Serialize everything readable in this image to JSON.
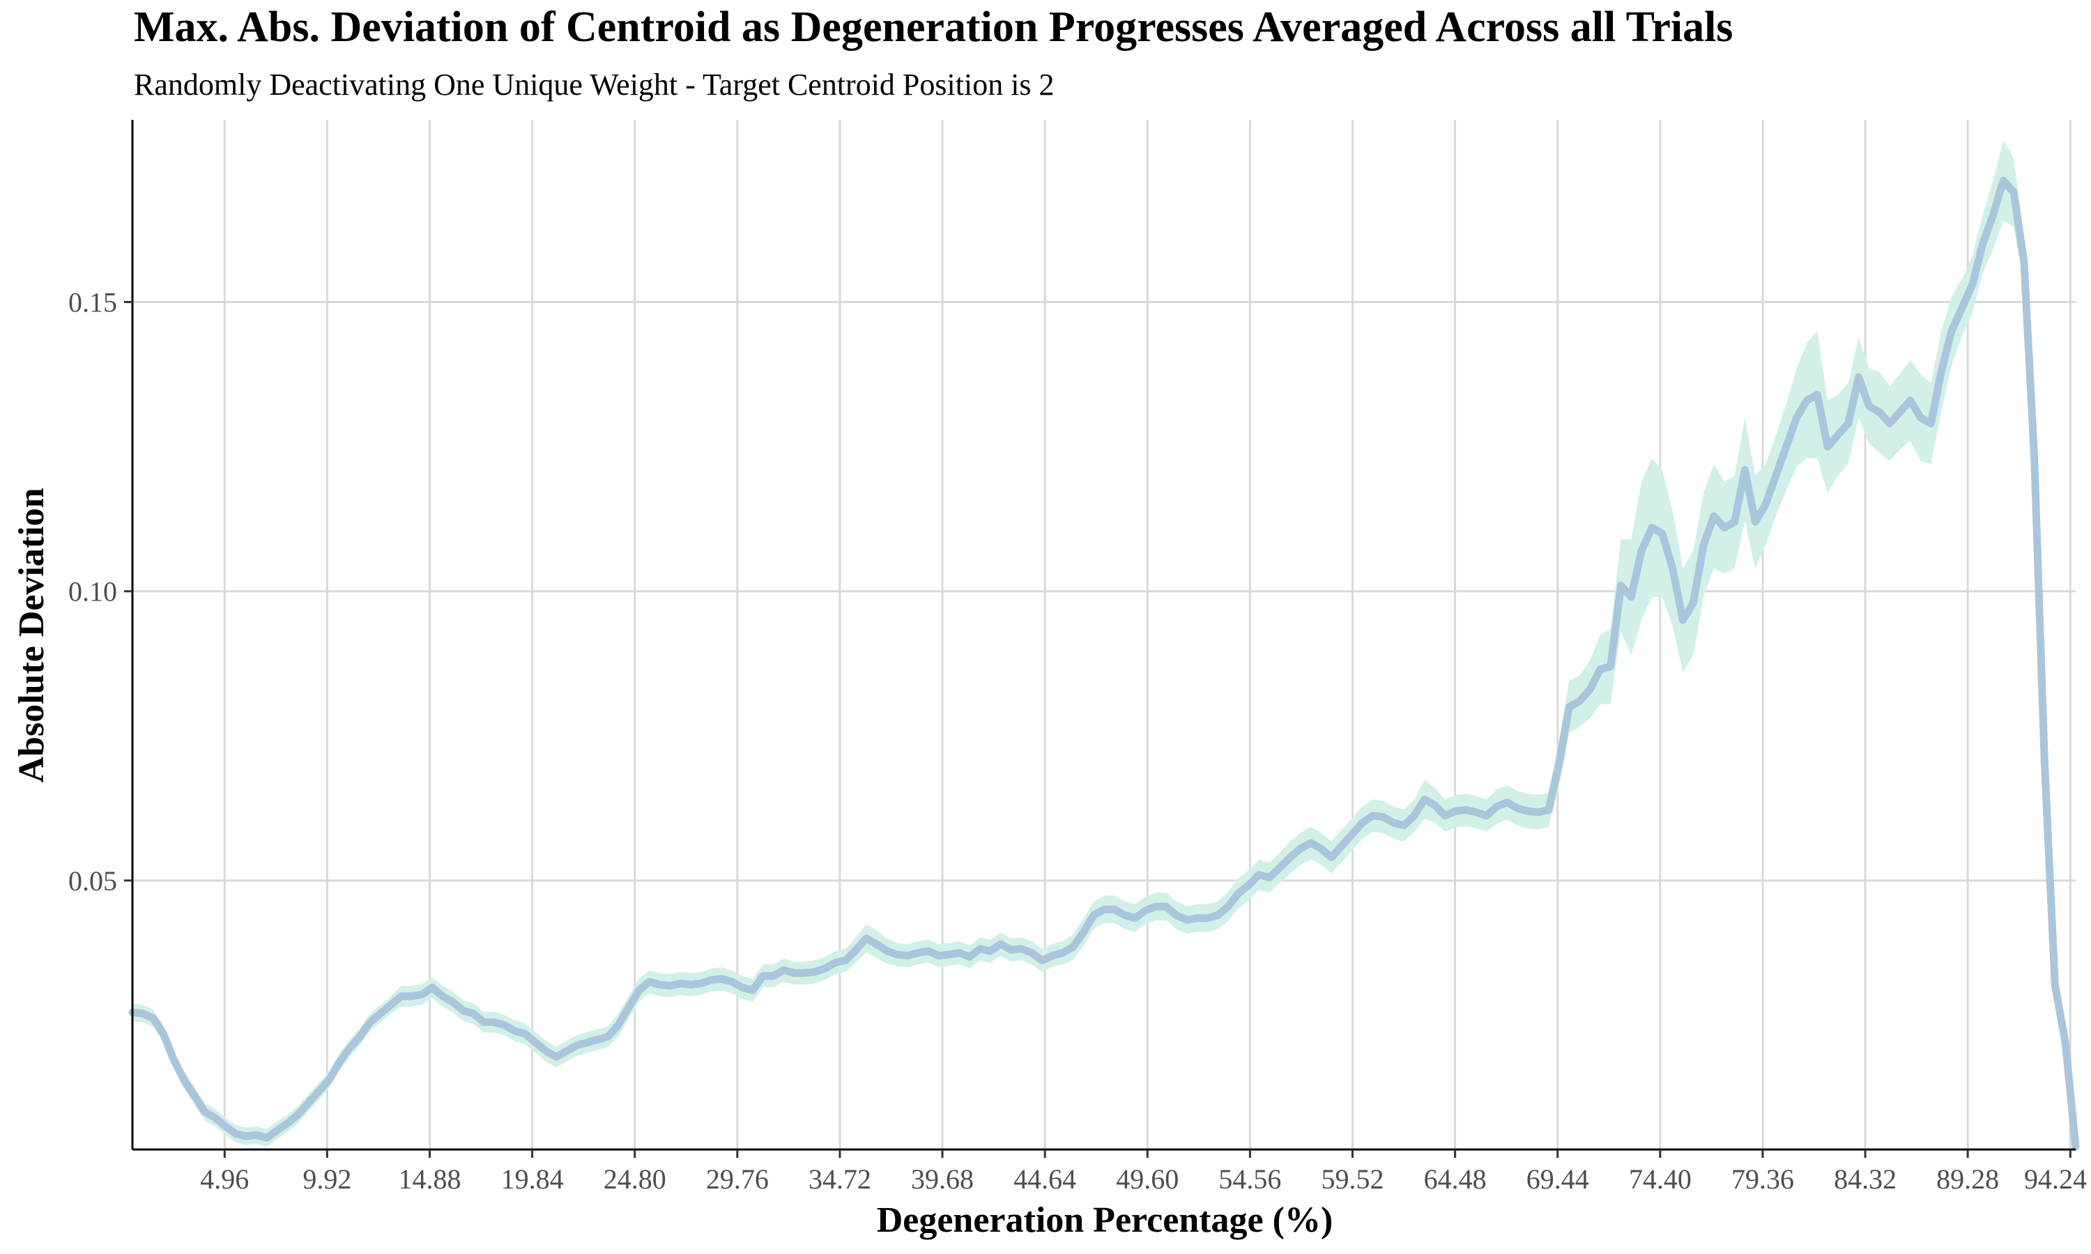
{
  "chart_data": {
    "type": "line",
    "title": "Max. Abs. Deviation of Centroid as Degeneration Progresses Averaged Across all Trials",
    "subtitle": "Randomly Deactivating One Unique Weight - Target Centroid Position is 2",
    "xlabel": "Degeneration Percentage (%)",
    "ylabel": "Absolute Deviation",
    "xlim": [
      0.5,
      94.5
    ],
    "ylim": [
      0.0035,
      0.1815
    ],
    "x_ticks": [
      4.96,
      9.92,
      14.88,
      19.84,
      24.8,
      29.76,
      34.72,
      39.68,
      44.64,
      49.6,
      54.56,
      59.52,
      64.48,
      69.44,
      74.4,
      79.36,
      84.32,
      89.28,
      94.24
    ],
    "x_tick_labels": [
      "4.96",
      "9.92",
      "14.88",
      "19.84",
      "24.80",
      "29.76",
      "34.72",
      "39.68",
      "44.64",
      "49.60",
      "54.56",
      "59.52",
      "64.48",
      "69.44",
      "74.40",
      "79.36",
      "84.32",
      "89.28",
      "94.24"
    ],
    "y_ticks": [
      0.05,
      0.1,
      0.15
    ],
    "y_tick_labels": [
      "0.05",
      "0.10",
      "0.15"
    ],
    "grid": true,
    "legend": "none",
    "series": [
      {
        "line_color": "#a9c6dc",
        "band_color": "#d3f0e8",
        "x": [
          0.5,
          1.0,
          1.5,
          2.0,
          2.5,
          3.0,
          3.5,
          4.0,
          4.5,
          5.0,
          5.5,
          6.0,
          6.5,
          7.0,
          7.5,
          8.0,
          8.5,
          9.0,
          9.5,
          10.0,
          10.5,
          11.0,
          11.5,
          12.0,
          12.5,
          13.0,
          13.5,
          14.0,
          14.5,
          15.0,
          15.5,
          16.0,
          16.5,
          17.0,
          17.5,
          18.0,
          18.5,
          19.0,
          19.5,
          20.0,
          20.5,
          21.0,
          21.5,
          22.0,
          22.5,
          23.0,
          23.5,
          24.0,
          24.5,
          25.0,
          25.5,
          26.0,
          26.5,
          27.0,
          27.5,
          28.0,
          28.5,
          29.0,
          29.5,
          30.0,
          30.5,
          31.0,
          31.5,
          32.0,
          32.5,
          33.0,
          33.5,
          34.0,
          34.5,
          35.0,
          35.5,
          36.0,
          36.5,
          37.0,
          37.5,
          38.0,
          38.5,
          39.0,
          39.5,
          40.0,
          40.5,
          41.0,
          41.5,
          42.0,
          42.5,
          43.0,
          43.5,
          44.0,
          44.5,
          45.0,
          45.5,
          46.0,
          46.5,
          47.0,
          47.5,
          48.0,
          48.5,
          49.0,
          49.5,
          50.0,
          50.5,
          51.0,
          51.5,
          52.0,
          52.5,
          53.0,
          53.5,
          54.0,
          54.5,
          55.0,
          55.5,
          56.0,
          56.5,
          57.0,
          57.5,
          58.0,
          58.5,
          59.0,
          59.5,
          60.0,
          60.5,
          61.0,
          61.5,
          62.0,
          62.5,
          63.0,
          63.5,
          64.0,
          64.5,
          65.0,
          65.5,
          66.0,
          66.5,
          67.0,
          67.5,
          68.0,
          68.5,
          69.0,
          69.5,
          70.0,
          70.5,
          71.0,
          71.5,
          72.0,
          72.5,
          73.0,
          73.5,
          74.0,
          74.5,
          75.0,
          75.5,
          76.0,
          76.5,
          77.0,
          77.5,
          78.0,
          78.5,
          79.0,
          79.5,
          80.0,
          80.5,
          81.0,
          81.5,
          82.0,
          82.5,
          83.0,
          83.5,
          84.0,
          84.5,
          85.0,
          85.5,
          86.0,
          86.5,
          87.0,
          87.5,
          88.0,
          88.5,
          89.0,
          89.5,
          90.0,
          90.5,
          91.0,
          91.5,
          92.0,
          92.5,
          93.0,
          93.5,
          94.0,
          94.5
        ],
        "y": [
          0.0272,
          0.027,
          0.0262,
          0.0235,
          0.019,
          0.0155,
          0.0128,
          0.01,
          0.009,
          0.0075,
          0.0062,
          0.0058,
          0.006,
          0.0055,
          0.0068,
          0.008,
          0.0095,
          0.0115,
          0.0135,
          0.0155,
          0.0185,
          0.021,
          0.023,
          0.0255,
          0.027,
          0.0285,
          0.03,
          0.03,
          0.0303,
          0.0315,
          0.03,
          0.029,
          0.0275,
          0.027,
          0.0255,
          0.0255,
          0.025,
          0.024,
          0.0235,
          0.022,
          0.0205,
          0.0195,
          0.0205,
          0.0215,
          0.022,
          0.0225,
          0.023,
          0.025,
          0.028,
          0.031,
          0.0325,
          0.032,
          0.0318,
          0.0322,
          0.032,
          0.0322,
          0.0328,
          0.033,
          0.0325,
          0.0315,
          0.031,
          0.0335,
          0.0335,
          0.0345,
          0.034,
          0.034,
          0.0342,
          0.0348,
          0.0358,
          0.0362,
          0.038,
          0.04,
          0.039,
          0.0378,
          0.0372,
          0.037,
          0.0375,
          0.0378,
          0.037,
          0.0372,
          0.0375,
          0.0368,
          0.0382,
          0.0378,
          0.039,
          0.038,
          0.0382,
          0.0375,
          0.0362,
          0.037,
          0.0375,
          0.0385,
          0.041,
          0.044,
          0.045,
          0.045,
          0.044,
          0.0435,
          0.0448,
          0.0455,
          0.0455,
          0.044,
          0.0432,
          0.0435,
          0.0435,
          0.044,
          0.0455,
          0.0478,
          0.0492,
          0.051,
          0.0505,
          0.0522,
          0.054,
          0.0555,
          0.0565,
          0.0555,
          0.054,
          0.056,
          0.058,
          0.06,
          0.0612,
          0.061,
          0.06,
          0.0595,
          0.0612,
          0.064,
          0.063,
          0.0612,
          0.062,
          0.0622,
          0.0618,
          0.0612,
          0.0628,
          0.0635,
          0.0625,
          0.062,
          0.0618,
          0.0622,
          0.07,
          0.08,
          0.081,
          0.083,
          0.0865,
          0.087,
          0.101,
          0.099,
          0.107,
          0.111,
          0.11,
          0.104,
          0.095,
          0.098,
          0.108,
          0.113,
          0.111,
          0.112,
          0.121,
          0.112,
          0.115,
          0.12,
          0.125,
          0.13,
          0.133,
          0.134,
          0.125,
          0.127,
          0.129,
          0.137,
          0.132,
          0.131,
          0.129,
          0.131,
          0.133,
          0.13,
          0.129,
          0.138,
          0.145,
          0.149,
          0.153,
          0.16,
          0.165,
          0.171,
          0.169,
          0.157,
          0.123,
          0.07,
          0.032,
          0.022,
          0.004
        ],
        "band": [
          0.0015,
          0.0015,
          0.0015,
          0.0015,
          0.0015,
          0.0015,
          0.0015,
          0.0015,
          0.0015,
          0.0015,
          0.0015,
          0.0015,
          0.0015,
          0.0015,
          0.0015,
          0.0015,
          0.0015,
          0.0015,
          0.0015,
          0.0015,
          0.0015,
          0.0015,
          0.0015,
          0.0015,
          0.0015,
          0.0015,
          0.0018,
          0.0018,
          0.0018,
          0.0018,
          0.0018,
          0.0018,
          0.0018,
          0.0018,
          0.0018,
          0.0018,
          0.0018,
          0.0018,
          0.0018,
          0.0018,
          0.0018,
          0.0018,
          0.0018,
          0.0018,
          0.0018,
          0.0018,
          0.0018,
          0.002,
          0.002,
          0.002,
          0.002,
          0.002,
          0.002,
          0.002,
          0.002,
          0.002,
          0.002,
          0.002,
          0.002,
          0.002,
          0.002,
          0.002,
          0.002,
          0.002,
          0.002,
          0.002,
          0.002,
          0.002,
          0.002,
          0.002,
          0.0022,
          0.0024,
          0.0024,
          0.0022,
          0.002,
          0.002,
          0.002,
          0.002,
          0.002,
          0.002,
          0.002,
          0.002,
          0.002,
          0.002,
          0.002,
          0.002,
          0.002,
          0.002,
          0.002,
          0.002,
          0.002,
          0.0022,
          0.0024,
          0.0024,
          0.0024,
          0.0024,
          0.0024,
          0.0024,
          0.0024,
          0.0024,
          0.0024,
          0.0024,
          0.0024,
          0.0024,
          0.0024,
          0.0024,
          0.0026,
          0.0026,
          0.0026,
          0.0026,
          0.0026,
          0.0026,
          0.0028,
          0.0028,
          0.0028,
          0.0028,
          0.0028,
          0.0028,
          0.0028,
          0.0028,
          0.0028,
          0.0028,
          0.0028,
          0.0028,
          0.0028,
          0.0034,
          0.003,
          0.0028,
          0.0028,
          0.0028,
          0.0028,
          0.0028,
          0.003,
          0.003,
          0.003,
          0.003,
          0.003,
          0.003,
          0.004,
          0.0045,
          0.0045,
          0.005,
          0.006,
          0.0065,
          0.008,
          0.01,
          0.012,
          0.012,
          0.011,
          0.01,
          0.009,
          0.009,
          0.009,
          0.009,
          0.008,
          0.008,
          0.009,
          0.008,
          0.007,
          0.007,
          0.0075,
          0.0085,
          0.01,
          0.011,
          0.008,
          0.007,
          0.007,
          0.007,
          0.0065,
          0.007,
          0.0065,
          0.0065,
          0.007,
          0.0075,
          0.007,
          0.007,
          0.006,
          0.005,
          0.005,
          0.005,
          0.006,
          0.007,
          0.006,
          0.004,
          0.003,
          0.002,
          0.0015,
          0.0012,
          0.001
        ]
      }
    ]
  }
}
